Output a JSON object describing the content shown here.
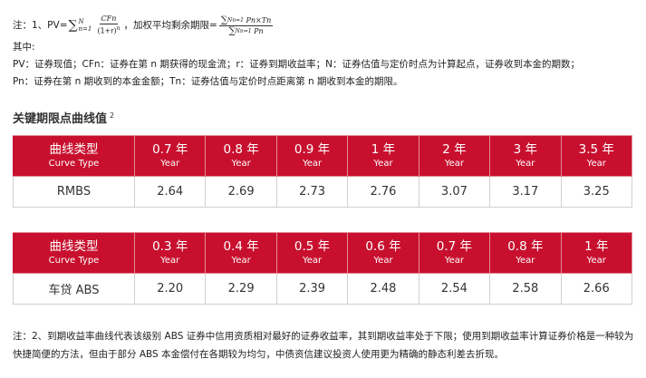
{
  "formula_note": {
    "lead": "注：1、PV=",
    "sum_upper": "N",
    "sum_lower": "n=1",
    "frac_num": "CFn",
    "frac_den": "(1+r)",
    "frac_den_exp": "n",
    "mid": "，加权平均剩余期限=",
    "wal_sum_upper": "N",
    "wal_sum_lower": "n=1",
    "wal_num": "Pn×Tn",
    "wal_den": "Pn",
    "where": "其中:",
    "line1": "PV：证券现值；CFn：证券在第 n 期获得的现金流；r：证券到期收益率；N：证券估值与定价时点为计算起点，证券收到本金的期数；",
    "line2": "Pn：证券在第 n 期收到的本金金额；Tn：证券估值与定价时点距离第 n 期收到本金的期限。"
  },
  "section": {
    "title": "关键期限点曲线值",
    "sup": "2"
  },
  "table1": {
    "head_cn": "曲线类型",
    "head_en": "Curve Type",
    "columns": [
      {
        "cn": "0.7 年",
        "en": "Year"
      },
      {
        "cn": "0.8 年",
        "en": "Year"
      },
      {
        "cn": "0.9 年",
        "en": "Year"
      },
      {
        "cn": "1 年",
        "en": "Year"
      },
      {
        "cn": "2 年",
        "en": "Year"
      },
      {
        "cn": "3 年",
        "en": "Year"
      },
      {
        "cn": "3.5 年",
        "en": "Year"
      }
    ],
    "row_label": "RMBS",
    "values": [
      "2.64",
      "2.69",
      "2.73",
      "2.76",
      "3.07",
      "3.17",
      "3.25"
    ]
  },
  "table2": {
    "head_cn": "曲线类型",
    "head_en": "Curve Type",
    "columns": [
      {
        "cn": "0.3 年",
        "en": "Year"
      },
      {
        "cn": "0.4 年",
        "en": "Year"
      },
      {
        "cn": "0.5 年",
        "en": "Year"
      },
      {
        "cn": "0.6 年",
        "en": "Year"
      },
      {
        "cn": "0.7 年",
        "en": "Year"
      },
      {
        "cn": "0.8 年",
        "en": "Year"
      },
      {
        "cn": "1 年",
        "en": "Year"
      }
    ],
    "row_label": "车贷 ABS",
    "values": [
      "2.20",
      "2.29",
      "2.39",
      "2.48",
      "2.54",
      "2.58",
      "2.66"
    ]
  },
  "footnote": "注：2、到期收益率曲线代表该级别 ABS 证券中信用资质相对最好的证券收益率，其到期收益率处于下限；使用到期收益率计算证券价格是一种较为快捷简便的方法，但由于部分 ABS 本金偿付在各期较为均匀，中债资信建议投资人使用更为精确的静态利差去折现。"
}
